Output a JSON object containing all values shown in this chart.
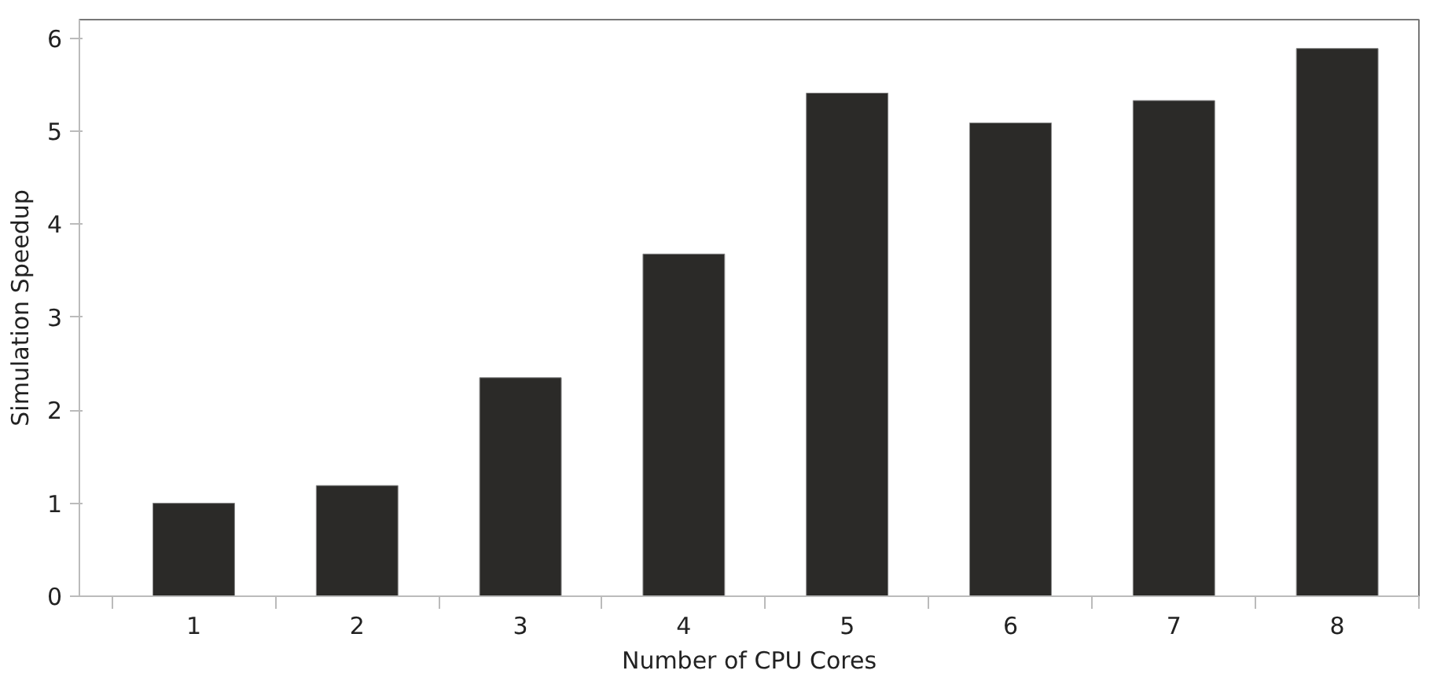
{
  "chart_data": {
    "type": "bar",
    "xlabel": "Number of CPU Cores",
    "ylabel": "Simulation Speedup",
    "categories": [
      "1",
      "2",
      "3",
      "4",
      "5",
      "6",
      "7",
      "8"
    ],
    "values": [
      1.0,
      1.19,
      2.35,
      3.68,
      5.41,
      5.09,
      5.33,
      5.89
    ],
    "color": "#2b2a28",
    "ylim": [
      0,
      6.2
    ],
    "yticks": [
      0,
      1,
      2,
      3,
      4,
      5,
      6
    ],
    "grid": false
  }
}
